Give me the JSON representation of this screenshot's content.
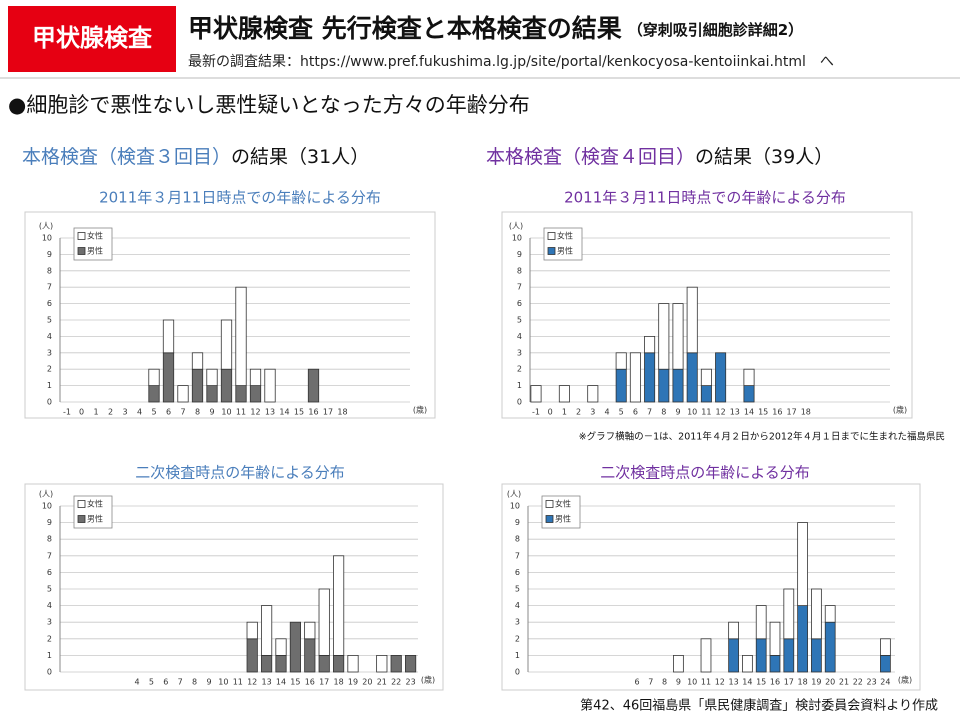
{
  "header": {
    "badge": "甲状腺検査",
    "title": "甲状腺検査 先行検査と本格検査の結果",
    "title_note": "（穿刺吸引細胞診詳細2）",
    "subtitle": "最新の調査結果：https://www.pref.fukushima.lg.jp/site/portal/kenkocyosa-kentoiinkai.html　へ"
  },
  "heading": "●細胞診で悪性ないし悪性疑いとなった方々の年齢分布",
  "sections": [
    {
      "label": "本格検査（検査３回目）",
      "suffix": "の結果（31人）",
      "color": "#4a7ebb"
    },
    {
      "label": "本格検査（検査４回目）",
      "suffix": "の結果（39人）",
      "color": "#7030a0"
    }
  ],
  "footnote": "※グラフ横軸の－1は、2011年４月２日から2012年４月１日までに生まれた福島県民",
  "source": "第42、46回福島県「県民健康調査」検討委員会資料より作成",
  "chart_data": [
    {
      "type": "bar",
      "stacked": true,
      "title": "2011年３月11日時点での年齢による分布",
      "title_color": "#4a7ebb",
      "y_label": "(人)",
      "x_label": "(歳)",
      "categories": [
        "-1",
        "0",
        "1",
        "2",
        "3",
        "4",
        "5",
        "6",
        "7",
        "8",
        "9",
        "10",
        "11",
        "12",
        "13",
        "14",
        "15",
        "16",
        "17",
        "18"
      ],
      "series": [
        {
          "name": "女性",
          "color": "#ffffff",
          "values": [
            0,
            0,
            0,
            0,
            0,
            0,
            1,
            2,
            1,
            1,
            1,
            3,
            6,
            1,
            2,
            0,
            0,
            0,
            0,
            0
          ]
        },
        {
          "name": "男性",
          "color": "#6e6e6e",
          "values": [
            0,
            0,
            0,
            0,
            0,
            0,
            1,
            3,
            0,
            2,
            1,
            2,
            1,
            1,
            0,
            0,
            0,
            2,
            0,
            0
          ]
        }
      ],
      "ylim": [
        0,
        10
      ],
      "yticks": [
        0,
        1,
        2,
        3,
        4,
        5,
        6,
        7,
        8,
        9,
        10
      ],
      "grid": true
    },
    {
      "type": "bar",
      "stacked": true,
      "title": "2011年３月11日時点での年齢による分布",
      "title_color": "#7030a0",
      "y_label": "(人)",
      "x_label": "(歳)",
      "categories": [
        "-1",
        "0",
        "1",
        "2",
        "3",
        "4",
        "5",
        "6",
        "7",
        "8",
        "9",
        "10",
        "11",
        "12",
        "13",
        "14",
        "15",
        "16",
        "17",
        "18"
      ],
      "series": [
        {
          "name": "女性",
          "color": "#ffffff",
          "values": [
            1,
            0,
            1,
            0,
            1,
            0,
            1,
            3,
            1,
            4,
            4,
            4,
            1,
            0,
            0,
            1,
            0,
            0,
            0,
            0
          ]
        },
        {
          "name": "男性",
          "color": "#2e75b6",
          "values": [
            0,
            0,
            0,
            0,
            0,
            0,
            2,
            0,
            3,
            2,
            2,
            3,
            1,
            3,
            0,
            1,
            0,
            0,
            0,
            0
          ]
        }
      ],
      "ylim": [
        0,
        10
      ],
      "yticks": [
        0,
        1,
        2,
        3,
        4,
        5,
        6,
        7,
        8,
        9,
        10
      ],
      "grid": true
    },
    {
      "type": "bar",
      "stacked": true,
      "title": "二次検査時点の年齢による分布",
      "title_color": "#4a7ebb",
      "y_label": "(人)",
      "x_label": "(歳)",
      "categories": [
        "4",
        "5",
        "6",
        "7",
        "8",
        "9",
        "10",
        "11",
        "12",
        "13",
        "14",
        "15",
        "16",
        "17",
        "18",
        "19",
        "20",
        "21",
        "22",
        "23"
      ],
      "series": [
        {
          "name": "女性",
          "color": "#ffffff",
          "values": [
            0,
            0,
            0,
            0,
            0,
            0,
            0,
            0,
            1,
            3,
            1,
            0,
            1,
            4,
            6,
            1,
            0,
            1,
            0,
            0
          ]
        },
        {
          "name": "男性",
          "color": "#6e6e6e",
          "values": [
            0,
            0,
            0,
            0,
            0,
            0,
            0,
            0,
            2,
            1,
            1,
            3,
            2,
            1,
            1,
            0,
            0,
            0,
            1,
            1
          ]
        }
      ],
      "ylim": [
        0,
        10
      ],
      "yticks": [
        0,
        1,
        2,
        3,
        4,
        5,
        6,
        7,
        8,
        9,
        10
      ],
      "grid": true
    },
    {
      "type": "bar",
      "stacked": true,
      "title": "二次検査時点の年齢による分布",
      "title_color": "#7030a0",
      "y_label": "(人)",
      "x_label": "(歳)",
      "categories": [
        "6",
        "7",
        "8",
        "9",
        "10",
        "11",
        "12",
        "13",
        "14",
        "15",
        "16",
        "17",
        "18",
        "19",
        "20",
        "21",
        "22",
        "23",
        "24"
      ],
      "series": [
        {
          "name": "女性",
          "color": "#ffffff",
          "values": [
            0,
            0,
            0,
            1,
            0,
            2,
            0,
            1,
            1,
            2,
            2,
            3,
            5,
            3,
            1,
            0,
            0,
            0,
            1
          ]
        },
        {
          "name": "男性",
          "color": "#2e75b6",
          "values": [
            0,
            0,
            0,
            0,
            0,
            0,
            0,
            2,
            0,
            2,
            1,
            2,
            4,
            2,
            3,
            0,
            0,
            0,
            1
          ]
        }
      ],
      "ylim": [
        0,
        10
      ],
      "yticks": [
        0,
        1,
        2,
        3,
        4,
        5,
        6,
        7,
        8,
        9,
        10
      ],
      "grid": true
    }
  ]
}
